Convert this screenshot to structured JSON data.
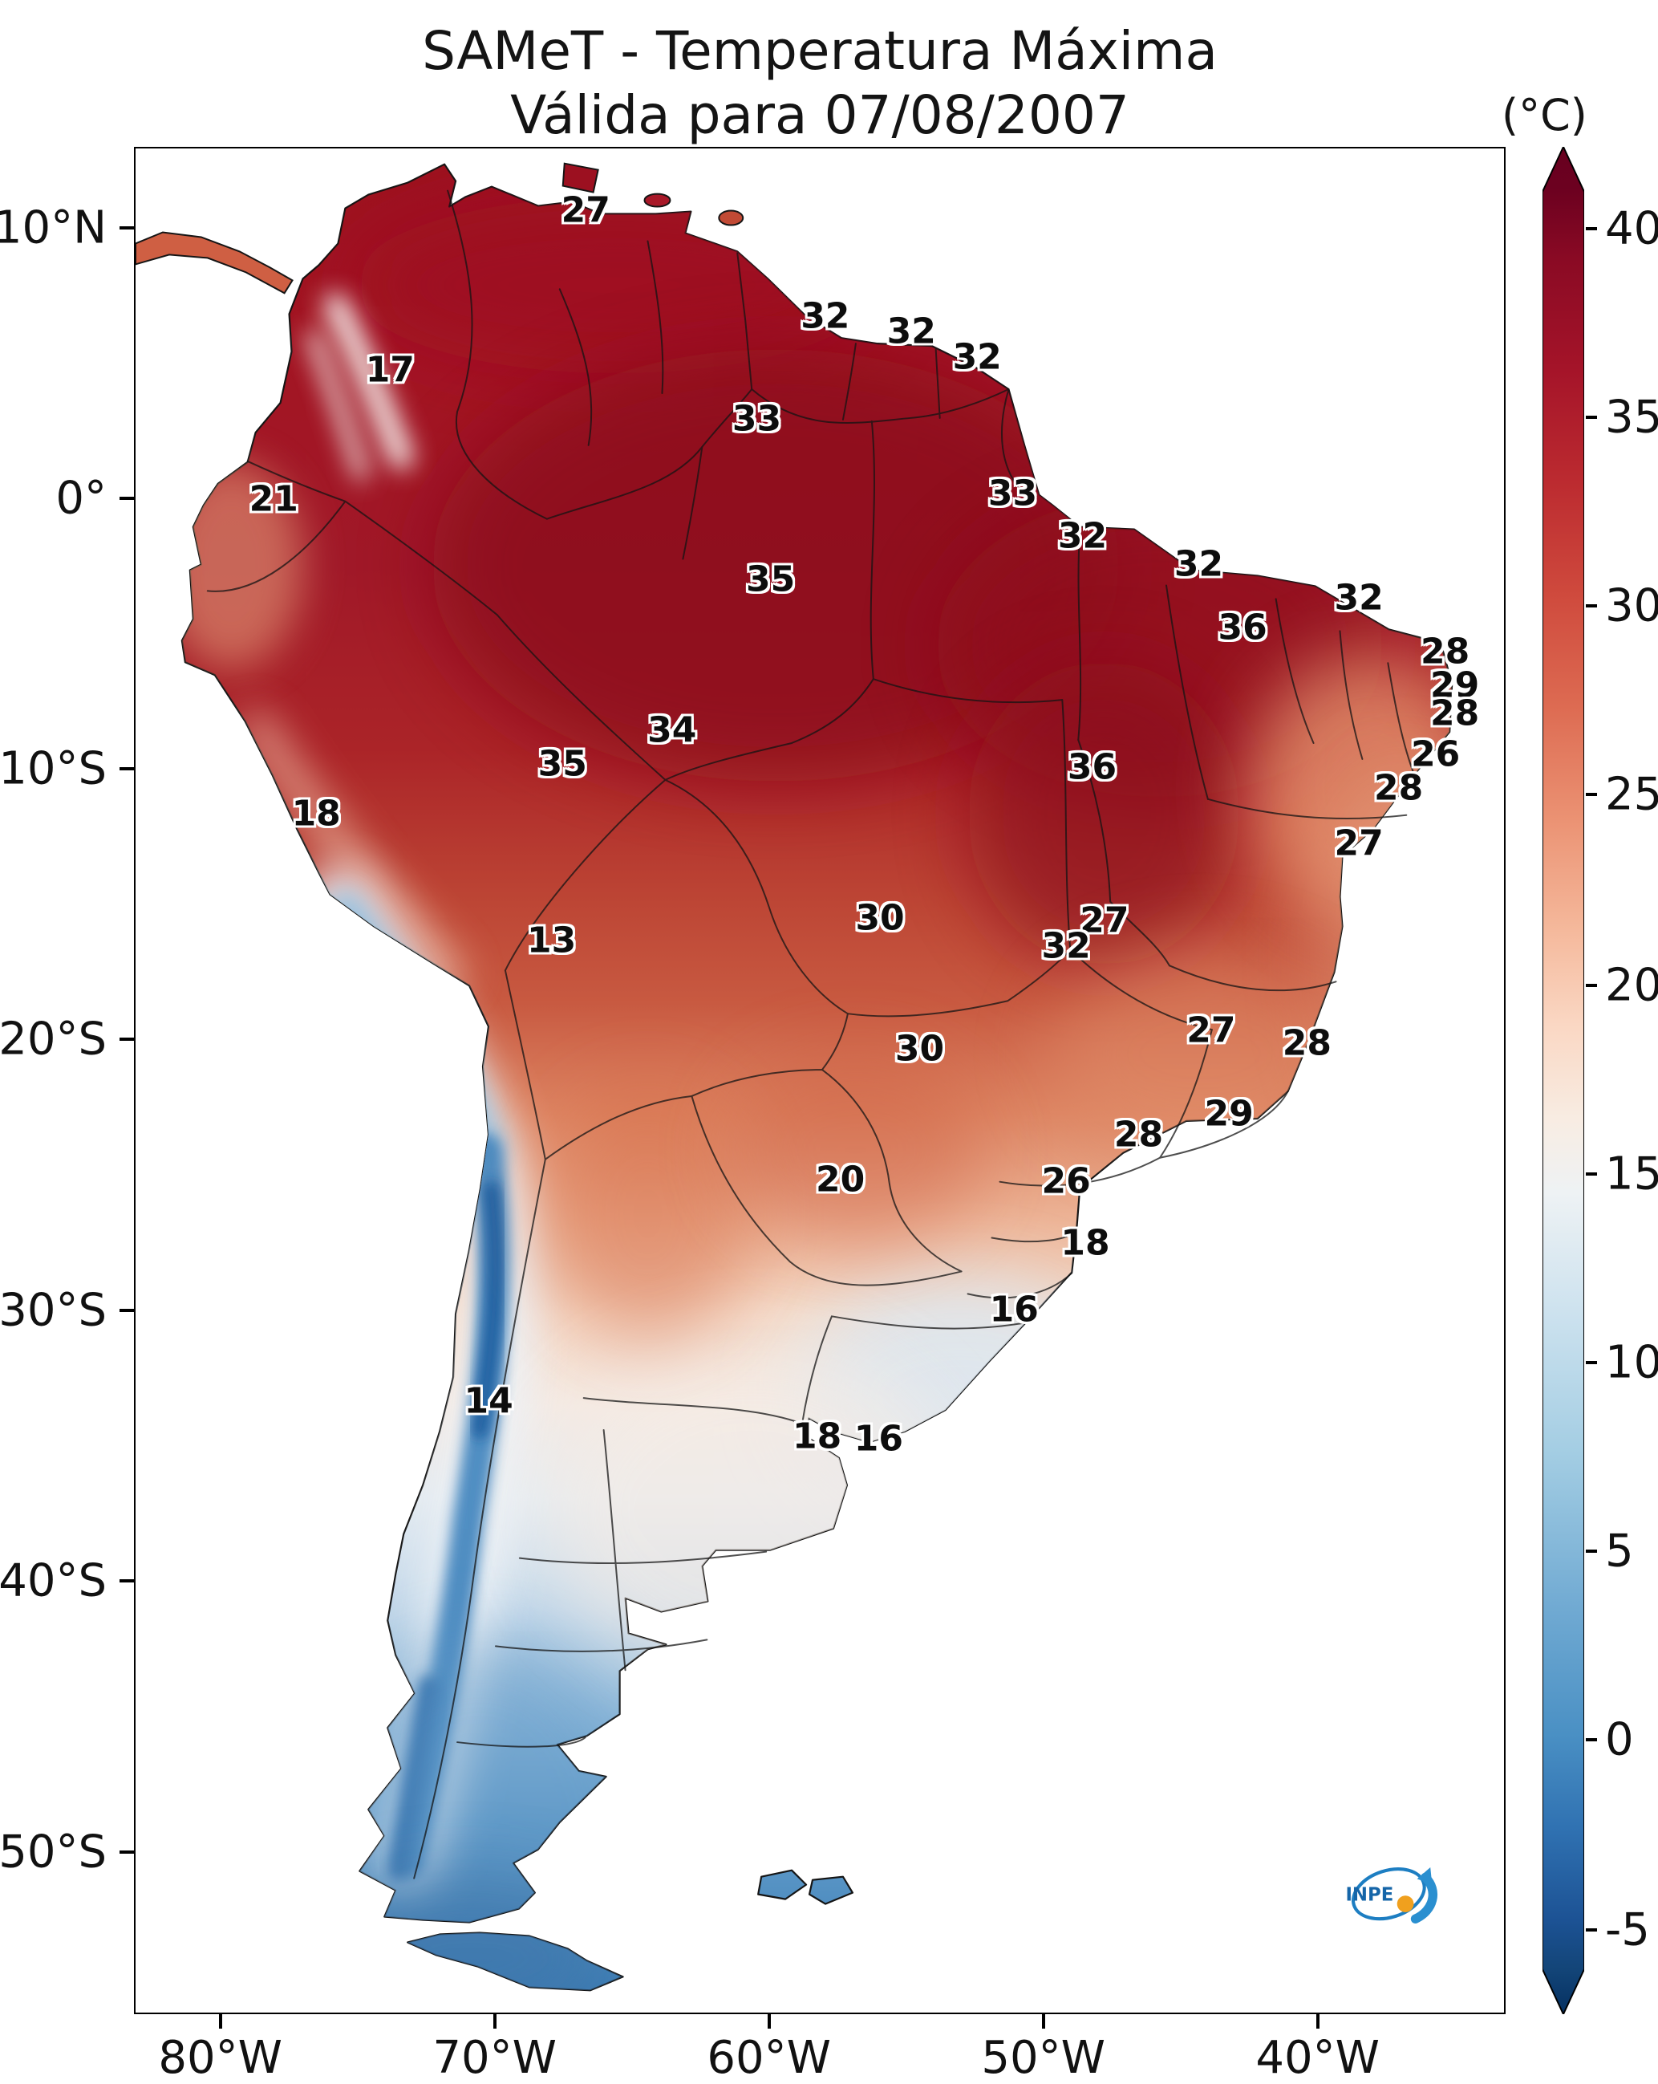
{
  "title": {
    "line1": "SAMeT - Temperatura Máxima",
    "line2": "Válida para 07/08/2007"
  },
  "colorbar": {
    "unit": "(°C)",
    "range_min": -5,
    "range_max": 40,
    "extend": "both",
    "top_color": "#67001f",
    "bottom_color": "#053061",
    "ticks": [
      {
        "label": "40",
        "pos": 4.4
      },
      {
        "label": "35",
        "pos": 14.5
      },
      {
        "label": "30",
        "pos": 24.6
      },
      {
        "label": "25",
        "pos": 34.7
      },
      {
        "label": "20",
        "pos": 44.9
      },
      {
        "label": "15",
        "pos": 55.0
      },
      {
        "label": "10",
        "pos": 65.1
      },
      {
        "label": "5",
        "pos": 75.2
      },
      {
        "label": "0",
        "pos": 85.3
      },
      {
        "label": "-5",
        "pos": 95.5
      }
    ]
  },
  "axes": {
    "lat_ticks": [
      {
        "label": "10°N",
        "pos": 4.35
      },
      {
        "label": "0°",
        "pos": 18.84
      },
      {
        "label": "10°S",
        "pos": 33.3
      },
      {
        "label": "20°S",
        "pos": 47.8
      },
      {
        "label": "30°S",
        "pos": 62.3
      },
      {
        "label": "40°S",
        "pos": 76.8
      },
      {
        "label": "50°S",
        "pos": 91.3
      }
    ],
    "lon_ticks": [
      {
        "label": "80°W",
        "pos": 6.3
      },
      {
        "label": "70°W",
        "pos": 26.3
      },
      {
        "label": "60°W",
        "pos": 46.3
      },
      {
        "label": "50°W",
        "pos": 66.3
      },
      {
        "label": "40°W",
        "pos": 86.3
      }
    ]
  },
  "chart_data": {
    "type": "heatmap",
    "title": "SAMeT - Temperatura Máxima",
    "valid_date": "07/08/2007",
    "units": "°C",
    "region": "South America",
    "colormap": "red-to-blue (red = hot, blue = cold)",
    "colorbar_range": [
      -5,
      40
    ],
    "stations": [
      {
        "value": 27,
        "x": 32.9,
        "y": 3.3
      },
      {
        "value": 32,
        "x": 50.4,
        "y": 9.0
      },
      {
        "value": 32,
        "x": 56.7,
        "y": 9.8
      },
      {
        "value": 32,
        "x": 61.5,
        "y": 11.2
      },
      {
        "value": 17,
        "x": 18.6,
        "y": 11.9
      },
      {
        "value": 33,
        "x": 45.4,
        "y": 14.5
      },
      {
        "value": 33,
        "x": 64.1,
        "y": 18.5
      },
      {
        "value": 21,
        "x": 10.1,
        "y": 18.8
      },
      {
        "value": 32,
        "x": 69.2,
        "y": 20.8
      },
      {
        "value": 32,
        "x": 77.7,
        "y": 22.3
      },
      {
        "value": 35,
        "x": 46.4,
        "y": 23.1
      },
      {
        "value": 32,
        "x": 89.4,
        "y": 24.1
      },
      {
        "value": 36,
        "x": 80.9,
        "y": 25.7
      },
      {
        "value": 28,
        "x": 95.7,
        "y": 27.0
      },
      {
        "value": 29,
        "x": 96.4,
        "y": 28.8
      },
      {
        "value": 28,
        "x": 96.4,
        "y": 30.3
      },
      {
        "value": 34,
        "x": 39.2,
        "y": 31.2
      },
      {
        "value": 26,
        "x": 95.0,
        "y": 32.5
      },
      {
        "value": 35,
        "x": 31.2,
        "y": 33.0
      },
      {
        "value": 36,
        "x": 69.9,
        "y": 33.2
      },
      {
        "value": 28,
        "x": 92.3,
        "y": 34.3
      },
      {
        "value": 18,
        "x": 13.2,
        "y": 35.7
      },
      {
        "value": 27,
        "x": 89.4,
        "y": 37.3
      },
      {
        "value": 30,
        "x": 54.4,
        "y": 41.3
      },
      {
        "value": 27,
        "x": 70.8,
        "y": 41.4
      },
      {
        "value": 32,
        "x": 68.0,
        "y": 42.8
      },
      {
        "value": 13,
        "x": 30.4,
        "y": 42.5
      },
      {
        "value": 27,
        "x": 78.6,
        "y": 47.3
      },
      {
        "value": 28,
        "x": 85.6,
        "y": 48.0
      },
      {
        "value": 30,
        "x": 57.3,
        "y": 48.3
      },
      {
        "value": 29,
        "x": 79.9,
        "y": 51.8
      },
      {
        "value": 28,
        "x": 73.3,
        "y": 52.9
      },
      {
        "value": 20,
        "x": 51.5,
        "y": 55.3
      },
      {
        "value": 26,
        "x": 68.0,
        "y": 55.4
      },
      {
        "value": 18,
        "x": 69.4,
        "y": 58.7
      },
      {
        "value": 16,
        "x": 64.2,
        "y": 62.3
      },
      {
        "value": 14,
        "x": 25.8,
        "y": 67.2
      },
      {
        "value": 18,
        "x": 49.8,
        "y": 69.1
      },
      {
        "value": 16,
        "x": 54.3,
        "y": 69.2
      }
    ]
  },
  "logo": {
    "text": "INPE"
  }
}
